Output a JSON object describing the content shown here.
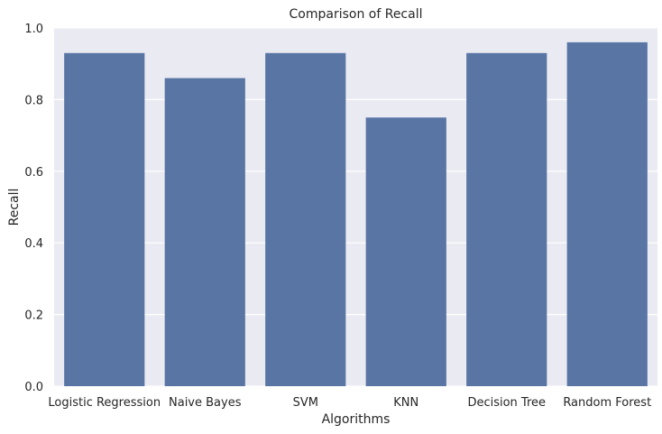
{
  "chart_data": {
    "type": "bar",
    "title": "Comparison of Recall",
    "xlabel": "Algorithms",
    "ylabel": "Recall",
    "categories": [
      "Logistic Regression",
      "Naive Bayes",
      "SVM",
      "KNN",
      "Decision Tree",
      "Random Forest"
    ],
    "values": [
      0.93,
      0.86,
      0.93,
      0.75,
      0.93,
      0.96
    ],
    "ylim": [
      0,
      1.0
    ],
    "yticks": [
      "0.0",
      "0.2",
      "0.4",
      "0.6",
      "0.8",
      "1.0"
    ],
    "grid": true,
    "colors": {
      "bar": "#5975a4",
      "plot_background": "#eaeaf2",
      "grid": "#ffffff"
    }
  }
}
